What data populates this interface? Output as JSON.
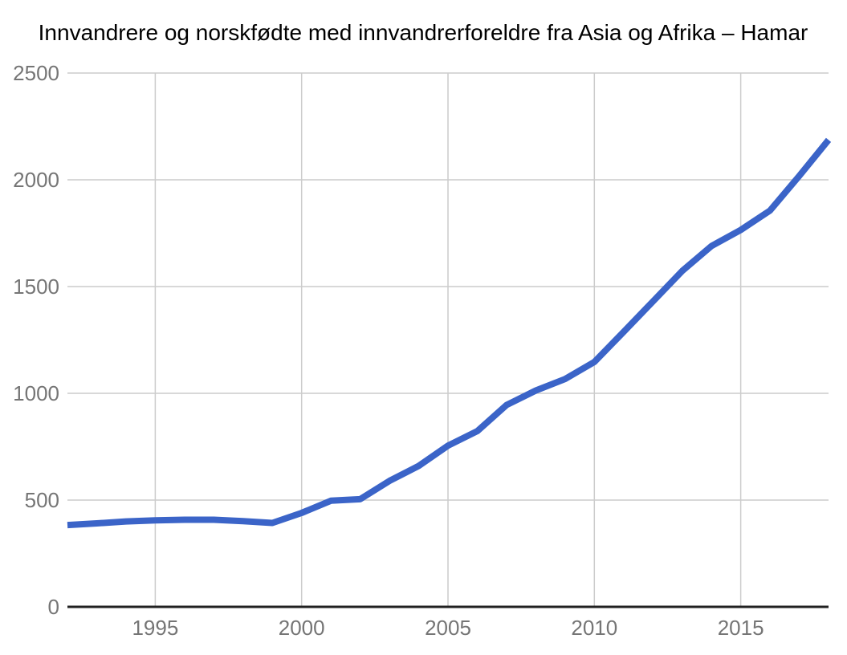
{
  "chart_data": {
    "type": "line",
    "title": "Innvandrere og norskfødte med innvandrerforeldre fra Asia og Afrika – Hamar",
    "x": [
      1992,
      1993,
      1994,
      1995,
      1996,
      1997,
      1998,
      1999,
      2000,
      2001,
      2002,
      2003,
      2004,
      2005,
      2006,
      2007,
      2008,
      2009,
      2010,
      2011,
      2012,
      2013,
      2014,
      2015,
      2016,
      2017,
      2018
    ],
    "values": [
      383,
      391,
      400,
      405,
      408,
      408,
      401,
      393,
      440,
      497,
      504,
      590,
      660,
      755,
      823,
      945,
      1013,
      1067,
      1147,
      1288,
      1430,
      1573,
      1690,
      1765,
      1856,
      2018,
      2187
    ],
    "xlabel": "",
    "ylabel": "",
    "xlim": [
      1992,
      2018
    ],
    "ylim": [
      0,
      2500
    ],
    "xticks": [
      1995,
      2000,
      2005,
      2010,
      2015
    ],
    "yticks": [
      0,
      500,
      1000,
      1500,
      2000,
      2500
    ],
    "grid": true,
    "legend": "none",
    "colors": {
      "line": "#3B64C8",
      "grid": "#CCCCCC",
      "axis": "#212121",
      "tick_label": "#757575",
      "title": "#000000",
      "background": "#FFFFFF"
    }
  }
}
